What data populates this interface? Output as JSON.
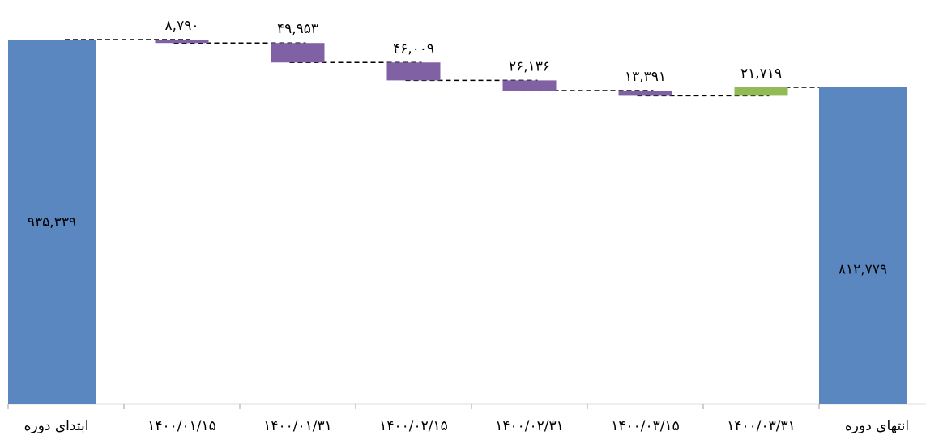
{
  "chart_data": {
    "type": "waterfall",
    "direction": "rtl",
    "categories": [
      "ابتدای دوره",
      "۱۴۰۰/۰۱/۱۵",
      "۱۴۰۰/۰۱/۳۱",
      "۱۴۰۰/۰۲/۱۵",
      "۱۴۰۰/۰۲/۳۱",
      "۱۴۰۰/۰۳/۱۵",
      "۱۴۰۰/۰۳/۳۱",
      "انتهای دوره"
    ],
    "values": [
      935339,
      -8790,
      -49953,
      -46009,
      -26136,
      -13391,
      21719,
      812779
    ],
    "kinds": [
      "total",
      "decrease",
      "decrease",
      "decrease",
      "decrease",
      "decrease",
      "increase",
      "total"
    ],
    "data_labels": [
      "۹۳۵,۳۳۹",
      "۸,۷۹۰",
      "۴۹,۹۵۳",
      "۴۶,۰۰۹",
      "۲۶,۱۳۶",
      "۱۳,۳۹۱",
      "۲۱,۷۱۹",
      "۸۱۲,۷۷۹"
    ],
    "colors": {
      "total": "#5b87c0",
      "decrease": "#8061a3",
      "increase": "#92ba57",
      "connector": "#000000",
      "axis": "#bfbfbf"
    },
    "ylim": [
      0,
      935339
    ],
    "grid": false,
    "legend": "none",
    "title": "",
    "xlabel": "",
    "ylabel": ""
  }
}
